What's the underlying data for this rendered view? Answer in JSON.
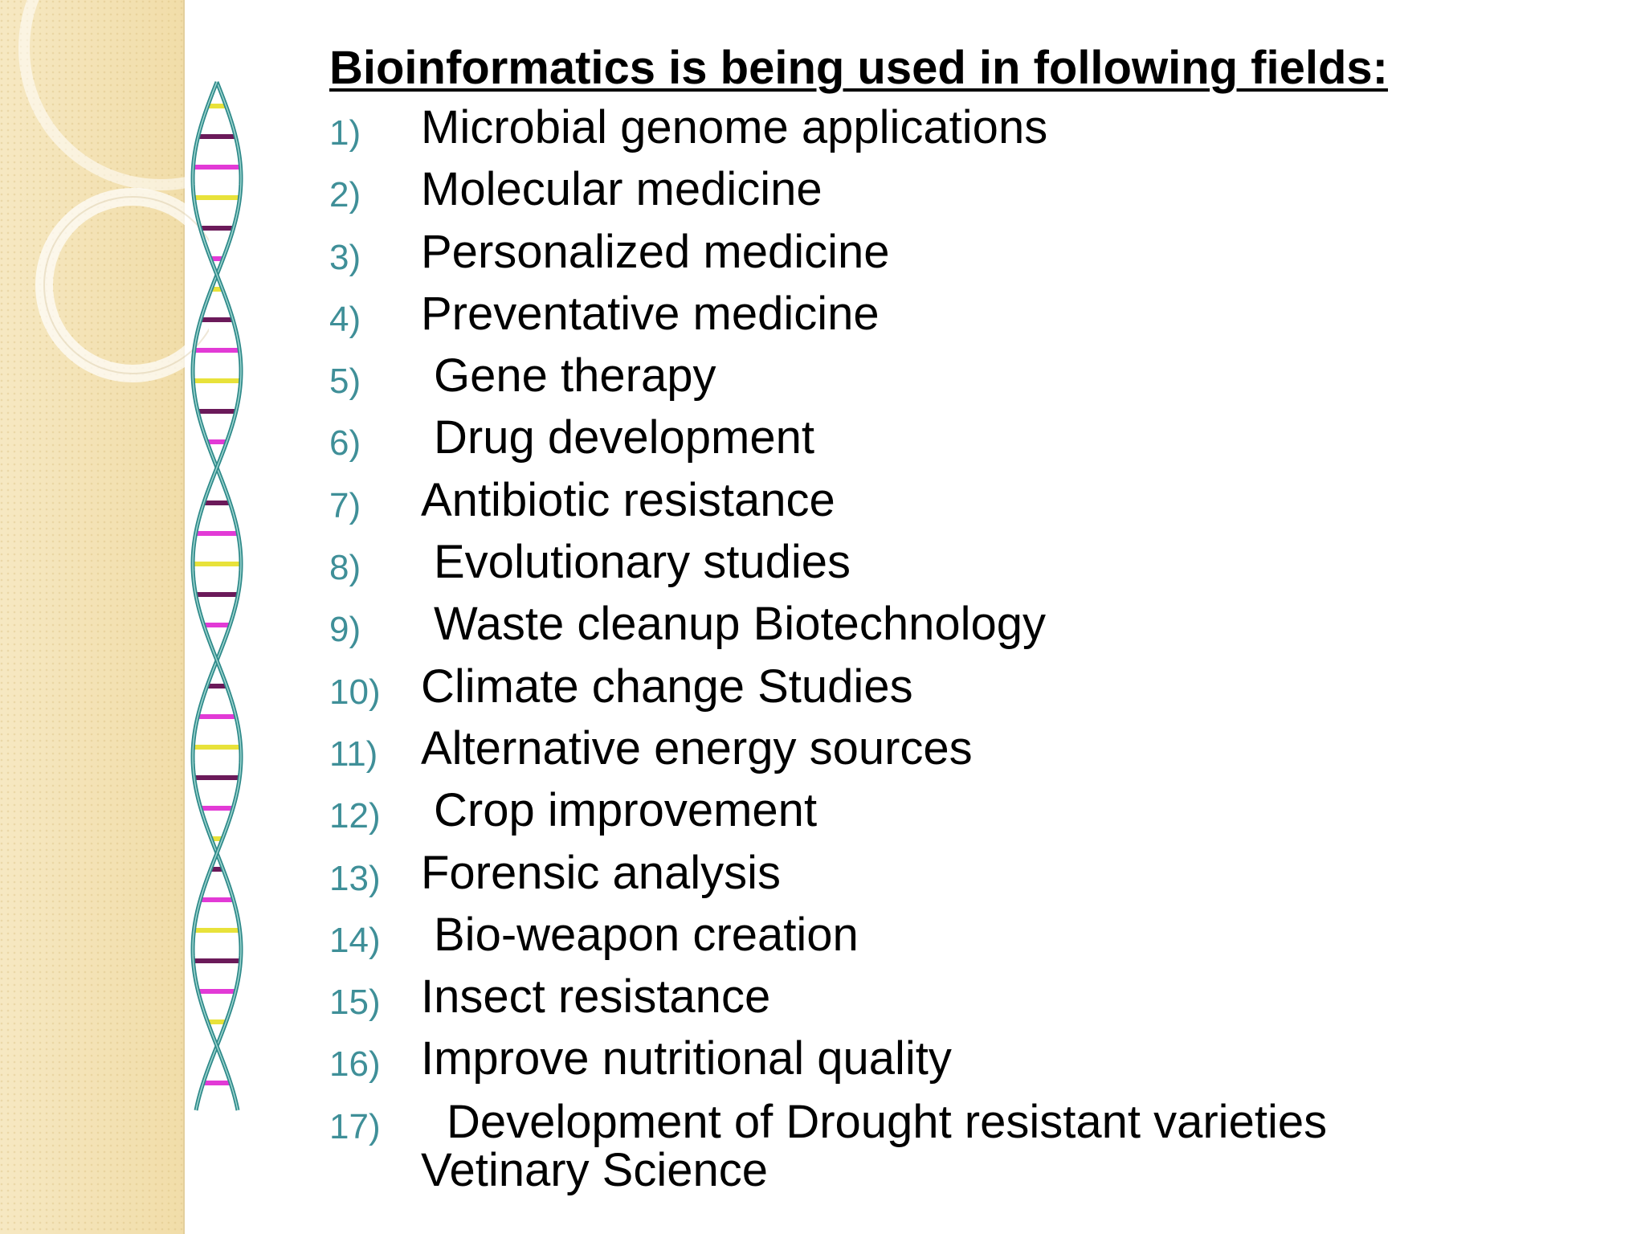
{
  "slide": {
    "heading": "Bioinformatics is being used in following fields:",
    "items": [
      {
        "num": "1)",
        "label": "Microbial genome applications"
      },
      {
        "num": "2)",
        "label": "Molecular medicine"
      },
      {
        "num": "3)",
        "label": "Personalized medicine"
      },
      {
        "num": "4)",
        "label": "Preventative medicine"
      },
      {
        "num": "5)",
        "label": "Gene therapy"
      },
      {
        "num": "6)",
        "label": "Drug development"
      },
      {
        "num": "7)",
        "label": "Antibiotic resistance"
      },
      {
        "num": "8)",
        "label": "Evolutionary studies"
      },
      {
        "num": "9)",
        "label": "Waste cleanup Biotechnology"
      },
      {
        "num": "10)",
        "label": "Climate change Studies"
      },
      {
        "num": "11)",
        "label": "Alternative energy sources"
      },
      {
        "num": "12)",
        "label": "Crop improvement"
      },
      {
        "num": "13)",
        "label": "Forensic analysis"
      },
      {
        "num": "14)",
        "label": "Bio-weapon creation"
      },
      {
        "num": "15)",
        "label": "Insect resistance"
      },
      {
        "num": "16)",
        "label": "Improve nutritional quality"
      }
    ],
    "last_item": {
      "num": "17)",
      "line1": "Development of Drought resistant varieties",
      "line2": "Vetinary Science"
    }
  },
  "colors": {
    "number": "#3f8f98",
    "text": "#000000",
    "background": "#ffffff",
    "band": "#f3e2b5",
    "dna_strand": "#2f8a8a",
    "rung_yellow": "#e8e23a",
    "rung_magenta": "#e23ad6",
    "rung_purple": "#6b1a5a"
  }
}
